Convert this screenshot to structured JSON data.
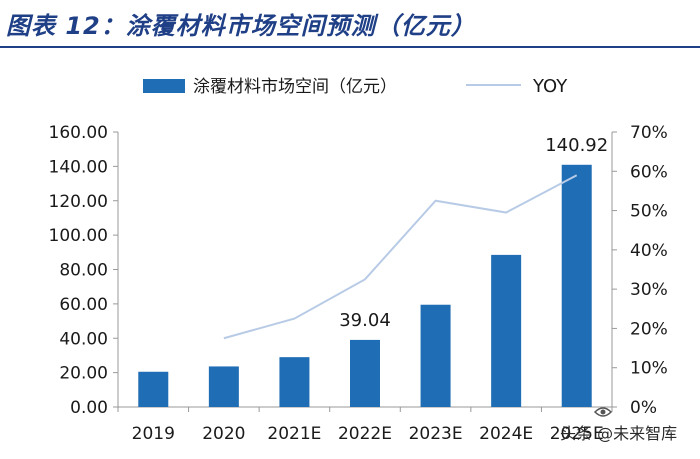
{
  "title": "图表 12：涂覆材料市场空间预测（亿元）",
  "watermark": "头条 @未来智库",
  "colors": {
    "bar": "#1f6db5",
    "line": "#b8cbe6",
    "title": "#1f3f86",
    "axis": "#999999",
    "text": "#1a1a1a"
  },
  "chart_data": {
    "type": "bar",
    "categories": [
      "2019",
      "2020",
      "2021E",
      "2022E",
      "2023E",
      "2024E",
      "2025E"
    ],
    "series": [
      {
        "name": "涂覆材料市场空间（亿元）",
        "type": "bar",
        "axis": "left",
        "values": [
          20.5,
          23.6,
          29.0,
          39.04,
          59.5,
          88.5,
          140.92
        ]
      },
      {
        "name": "YOY",
        "type": "line",
        "axis": "right",
        "values": [
          null,
          0.175,
          0.225,
          0.325,
          0.525,
          0.495,
          0.59
        ]
      }
    ],
    "y_left": {
      "ylim": [
        0,
        160
      ],
      "ticks": [
        "0.00",
        "20.00",
        "40.00",
        "60.00",
        "80.00",
        "100.00",
        "120.00",
        "140.00",
        "160.00"
      ]
    },
    "y_right": {
      "ylim": [
        0,
        0.7
      ],
      "ticks": [
        "0%",
        "10%",
        "20%",
        "30%",
        "40%",
        "50%",
        "60%",
        "70%"
      ]
    },
    "data_labels": [
      {
        "category": "2022E",
        "text": "39.04"
      },
      {
        "category": "2025E",
        "text": "140.92"
      }
    ],
    "legend_placement": "top",
    "grid": false
  }
}
